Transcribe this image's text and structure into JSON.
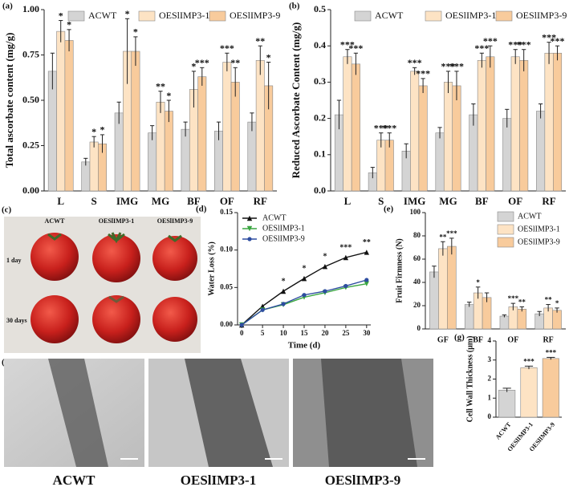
{
  "chart_data": [
    {
      "type": "bar",
      "panel": "(a)",
      "ylabel": "Total ascorbate content (mg/g)",
      "legend": "top",
      "categories": [
        "L",
        "S",
        "IMG",
        "MG",
        "BF",
        "OF",
        "RF"
      ],
      "ylim": [
        0,
        1.0
      ],
      "yticks": [
        {
          "value": 0,
          "label": "0.00"
        },
        {
          "value": 0.25,
          "label": "0.25"
        },
        {
          "value": 0.5,
          "label": "0.50"
        },
        {
          "value": 0.75,
          "label": "0.75"
        },
        {
          "value": 1.0,
          "label": "1.00"
        }
      ],
      "series": [
        {
          "name": "ACWT",
          "color": "#d4d4d4",
          "values": [
            0.66,
            0.16,
            0.43,
            0.32,
            0.34,
            0.33,
            0.38
          ],
          "errors": [
            0.1,
            0.02,
            0.06,
            0.04,
            0.04,
            0.05,
            0.05
          ],
          "significance": [
            null,
            null,
            null,
            null,
            null,
            null,
            null
          ]
        },
        {
          "name": "OESlIMP3-1",
          "color": "#fde3c4",
          "values": [
            0.88,
            0.27,
            0.77,
            0.49,
            0.56,
            0.71,
            0.72
          ],
          "errors": [
            0.06,
            0.03,
            0.18,
            0.06,
            0.1,
            0.05,
            0.08
          ],
          "significance": [
            "*",
            "*",
            "*",
            "**",
            "*",
            "***",
            "**"
          ]
        },
        {
          "name": "OESlIMP3-9",
          "color": "#f8cb9c",
          "values": [
            0.83,
            0.26,
            0.77,
            0.44,
            0.63,
            0.6,
            0.58
          ],
          "errors": [
            0.06,
            0.05,
            0.08,
            0.06,
            0.05,
            0.08,
            0.13
          ],
          "significance": [
            "*",
            "*",
            "*",
            "*",
            "***",
            "**",
            "*"
          ]
        }
      ]
    },
    {
      "type": "bar",
      "panel": "(b)",
      "ylabel": "Reduced Ascorbate Content (mg/g)",
      "legend": "top",
      "categories": [
        "L",
        "S",
        "IMG",
        "MG",
        "BF",
        "OF",
        "RF"
      ],
      "ylim": [
        0,
        0.5
      ],
      "yticks": [
        {
          "value": 0,
          "label": "0.0"
        },
        0.1,
        0.2,
        0.3,
        0.4,
        0.5
      ],
      "series": [
        {
          "name": "ACWT",
          "color": "#d4d4d4",
          "values": [
            0.21,
            0.05,
            0.11,
            0.16,
            0.21,
            0.2,
            0.22
          ],
          "errors": [
            0.04,
            0.015,
            0.02,
            0.015,
            0.03,
            0.025,
            0.02
          ],
          "significance": [
            null,
            null,
            null,
            null,
            null,
            null,
            null
          ]
        },
        {
          "name": "OESlIMP3-1",
          "color": "#fde3c4",
          "values": [
            0.37,
            0.14,
            0.33,
            0.3,
            0.36,
            0.37,
            0.38
          ],
          "errors": [
            0.02,
            0.02,
            0.01,
            0.03,
            0.02,
            0.02,
            0.03
          ],
          "significance": [
            "***",
            "***",
            "***",
            "***",
            "***",
            "***",
            "***"
          ]
        },
        {
          "name": "OESlIMP3-9",
          "color": "#f8cb9c",
          "values": [
            0.35,
            0.14,
            0.29,
            0.29,
            0.37,
            0.36,
            0.38
          ],
          "errors": [
            0.03,
            0.02,
            0.02,
            0.04,
            0.03,
            0.03,
            0.02
          ],
          "significance": [
            "***",
            "***",
            "***",
            "***",
            "***",
            "***",
            "***"
          ]
        }
      ]
    },
    {
      "type": "line",
      "panel": "(d)",
      "ylabel": "Water Loss (%)",
      "xlabel": "Time (d)",
      "legend": "upper left",
      "x": [
        0,
        5,
        10,
        15,
        20,
        25,
        30
      ],
      "xlim": [
        -1,
        31
      ],
      "xticks": [
        0,
        5,
        10,
        15,
        20,
        25,
        30
      ],
      "ylim": [
        0,
        0.15
      ],
      "yticks": [
        {
          "value": 0,
          "label": "0.00"
        },
        {
          "value": 0.05,
          "label": "0.05"
        },
        {
          "value": 0.1,
          "label": "0.10"
        },
        {
          "value": 0.15,
          "label": "0.15"
        }
      ],
      "series": [
        {
          "name": "ACWT",
          "color": "#111111",
          "marker": "^",
          "values": [
            0,
            0.025,
            0.045,
            0.062,
            0.078,
            0.09,
            0.097
          ]
        },
        {
          "name": "OESlIMP3-1",
          "color": "#3aa640",
          "marker": "v",
          "values": [
            0,
            0.02,
            0.027,
            0.037,
            0.043,
            0.05,
            0.055
          ]
        },
        {
          "name": "OESlIMP3-9",
          "color": "#2e4da0",
          "marker": "o",
          "values": [
            0,
            0.02,
            0.028,
            0.04,
            0.045,
            0.052,
            0.06
          ]
        }
      ],
      "significance": [
        null,
        null,
        "*",
        "*",
        "*",
        "***",
        "**"
      ]
    },
    {
      "type": "bar",
      "panel": "(e)",
      "ylabel": "Fruit Firmness (N)",
      "legend": "upper right",
      "categories": [
        "GF",
        "BF",
        "OF",
        "RF"
      ],
      "ylim": [
        0,
        100
      ],
      "yticks": [
        0,
        20,
        40,
        60,
        80,
        100
      ],
      "series": [
        {
          "name": "ACWT",
          "color": "#d4d4d4",
          "values": [
            49,
            21,
            11,
            13
          ],
          "errors": [
            5,
            2,
            1,
            2
          ],
          "significance": [
            null,
            null,
            null,
            null
          ]
        },
        {
          "name": "OESlIMP3-1",
          "color": "#fde3c4",
          "values": [
            69,
            31,
            19,
            18
          ],
          "errors": [
            6,
            5,
            3,
            3
          ],
          "significance": [
            "**",
            "*",
            "***",
            "**"
          ]
        },
        {
          "name": "OESlIMP3-9",
          "color": "#f8cb9c",
          "values": [
            71,
            27,
            17,
            16
          ],
          "errors": [
            7,
            4,
            2,
            2
          ],
          "significance": [
            "***",
            null,
            "**",
            "*"
          ]
        }
      ]
    },
    {
      "type": "bar",
      "panel": "(g)",
      "ylabel": "Cell Wall Thickness (μm)",
      "categories": [
        "ACWT",
        "OESlIMP3-1",
        "OESlIMP3-9"
      ],
      "ylim": [
        0,
        4
      ],
      "yticks": [
        0,
        1,
        2,
        3,
        4
      ],
      "values": [
        1.42,
        2.6,
        3.08
      ],
      "errors": [
        0.1,
        0.08,
        0.06
      ],
      "colors": [
        "#d4d4d4",
        "#fde3c4",
        "#f8cb9c"
      ],
      "significance": [
        null,
        "***",
        "***"
      ]
    }
  ],
  "photos": {
    "c": {
      "panel": "(c)",
      "columns": [
        "ACWT",
        "OESlIMP3-1",
        "OESlIMP3-9"
      ],
      "rows": [
        "1 day",
        "30 days"
      ]
    },
    "f": {
      "panel": "(f)",
      "captions": [
        "ACWT",
        "OESlIMP3-1",
        "OESlIMP3-9"
      ]
    }
  }
}
